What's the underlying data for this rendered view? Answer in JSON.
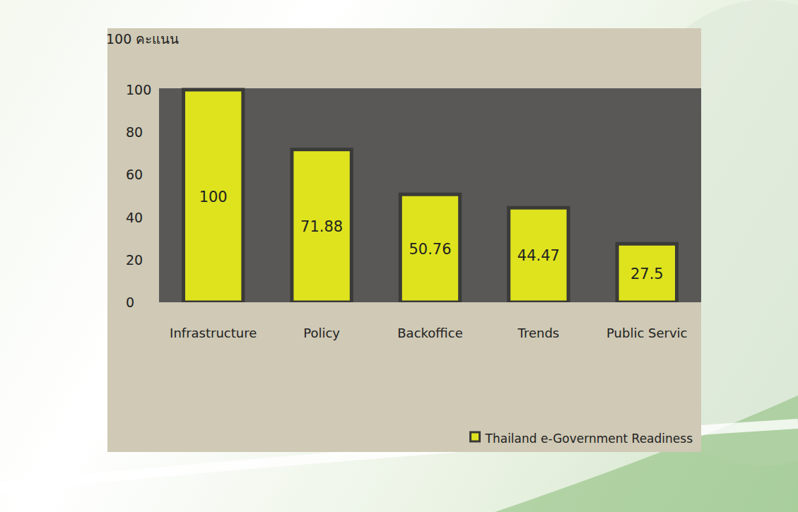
{
  "chart_data": {
    "type": "bar",
    "y_label": "100 คะแนน",
    "categories": [
      "Infrastructure",
      "Policy",
      "Backoffice",
      "Trends",
      "Public Servic"
    ],
    "series": [
      {
        "name": "Thailand e-Government Readiness",
        "color": "#dfe31e",
        "values": [
          100,
          71.88,
          50.76,
          44.47,
          27.5
        ]
      }
    ],
    "ylim": [
      0,
      100
    ],
    "yticks": [
      0,
      20,
      40,
      60,
      80,
      100
    ],
    "grid": false,
    "legend": "bottom-right",
    "data_labels": true
  }
}
